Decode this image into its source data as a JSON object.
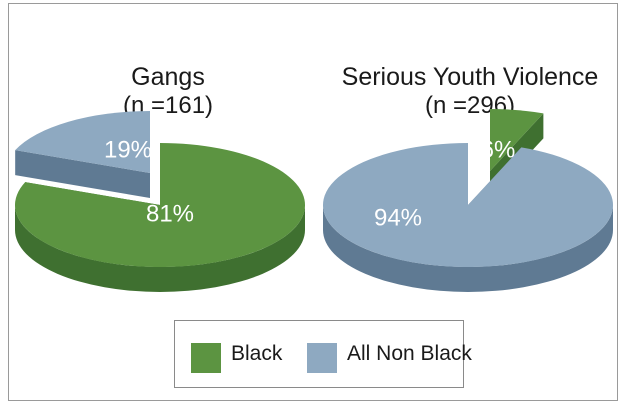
{
  "colors": {
    "black_top": "#5c9441",
    "black_side": "#3f7030",
    "nonblack_top": "#8ea9c1",
    "nonblack_side": "#5f7a93",
    "label_text": "#ffffff"
  },
  "chart_data": [
    {
      "type": "pie",
      "title": "Gangs",
      "subtitle": "(n =161)",
      "slices": [
        {
          "name": "Black",
          "value": 81,
          "label": "81%"
        },
        {
          "name": "All Non Black",
          "value": 19,
          "label": "19%",
          "exploded": true
        }
      ]
    },
    {
      "type": "pie",
      "title": "Serious Youth Violence",
      "subtitle": "(n =296)",
      "slices": [
        {
          "name": "Black",
          "value": 6,
          "label": "6%",
          "exploded": true
        },
        {
          "name": "All Non Black",
          "value": 94,
          "label": "94%"
        }
      ]
    }
  ],
  "legend": {
    "items": [
      {
        "name": "Black",
        "color_key": "black_top"
      },
      {
        "name": "All Non Black",
        "color_key": "nonblack_top"
      }
    ]
  }
}
